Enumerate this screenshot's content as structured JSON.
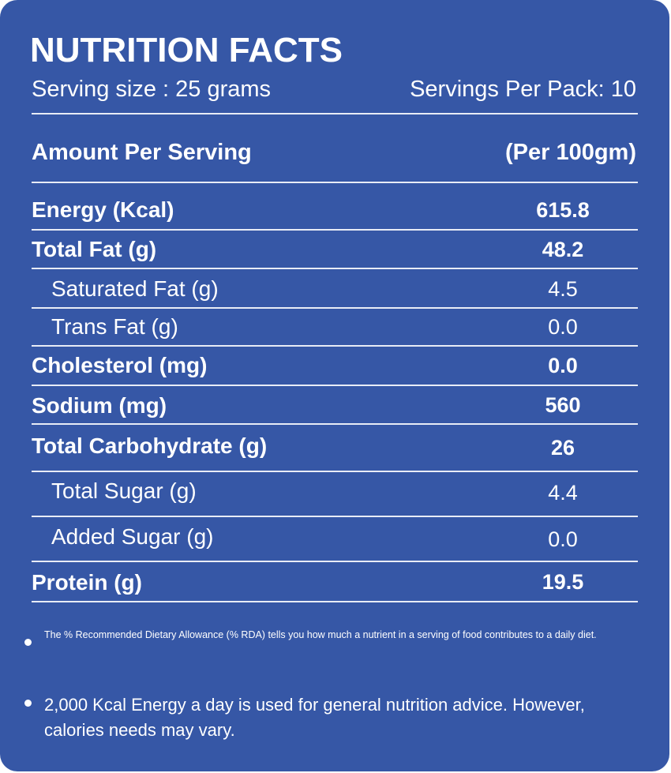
{
  "header": {
    "title": "NUTRITION FACTS",
    "serving_size": "Serving size : 25 grams",
    "servings_per_pack": "Servings Per Pack: 10"
  },
  "table": {
    "header": [
      "Amount Per Serving",
      "(Per 100gm)"
    ],
    "rows": [
      [
        "Energy (Kcal)",
        "615.8"
      ],
      [
        "Total Fat (g)",
        "48.2"
      ],
      [
        "Saturated Fat (g)",
        "4.5"
      ],
      [
        "Trans Fat (g)",
        "0.0"
      ],
      [
        "Cholesterol (mg)",
        "0.0"
      ],
      [
        "Sodium  (mg)",
        "560"
      ],
      [
        "Total Carbohydrate (g)",
        "26"
      ],
      [
        "Total Sugar (g)",
        "4.4"
      ],
      [
        "Added Sugar (g)",
        "0.0"
      ],
      [
        "Protein (g)",
        "19.5"
      ]
    ]
  },
  "notes": [
    "The % Recommended Dietary Allowance (% RDA) tells you how much a nutrient in a serving of food contributes to a daily diet.",
    "2,000 Kcal Energy a day is used for general nutrition advice. However, calories needs may vary."
  ]
}
